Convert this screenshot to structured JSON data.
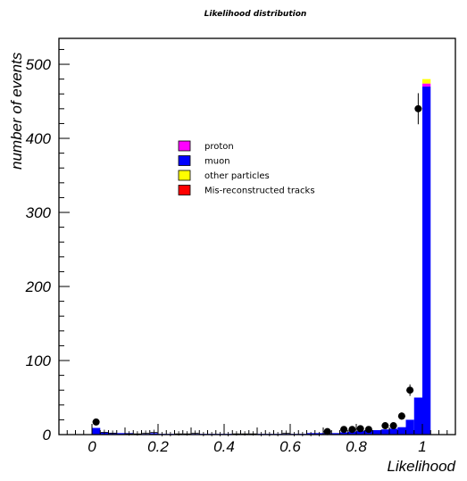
{
  "chart_data": {
    "type": "bar",
    "title": "Likelihood distribution",
    "xlabel": "Likelihood",
    "ylabel": "number of events",
    "xlim": [
      -0.1,
      1.1
    ],
    "ylim": [
      0,
      535
    ],
    "x_ticks": [
      0,
      0.2,
      0.4,
      0.6,
      0.8,
      1
    ],
    "x_tick_labels": [
      "0",
      "0.2",
      "0.4",
      "0.6",
      "0.8",
      "1"
    ],
    "y_ticks": [
      0,
      100,
      200,
      300,
      400,
      500
    ],
    "y_tick_labels": [
      "0",
      "100",
      "200",
      "300",
      "400",
      "500"
    ],
    "bin_edges": [
      -0.1,
      -0.075,
      -0.05,
      -0.025,
      0,
      0.025,
      0.05,
      0.075,
      0.1,
      0.125,
      0.15,
      0.175,
      0.2,
      0.225,
      0.25,
      0.275,
      0.3,
      0.325,
      0.35,
      0.375,
      0.4,
      0.425,
      0.45,
      0.475,
      0.5,
      0.525,
      0.55,
      0.575,
      0.6,
      0.625,
      0.65,
      0.675,
      0.7,
      0.725,
      0.75,
      0.775,
      0.8,
      0.825,
      0.85,
      0.875,
      0.9,
      0.925,
      0.95,
      0.975,
      1,
      1.025,
      1.05,
      1.075,
      1.1
    ],
    "legend_position": "upper-left-center",
    "series": [
      {
        "name": "Mis-reconstructed tracks",
        "color": "#ff0000",
        "values": [
          0,
          0,
          0,
          0,
          0,
          0,
          0,
          0,
          0,
          0,
          0,
          0,
          0,
          0,
          0,
          0,
          0,
          0,
          0,
          0,
          0,
          0,
          0,
          0,
          0,
          0,
          0,
          0,
          0,
          0,
          0,
          0,
          0,
          0,
          0,
          0,
          0,
          0,
          0,
          0,
          0,
          0,
          0,
          0,
          0,
          0,
          0,
          0
        ]
      },
      {
        "name": "muon",
        "color": "#0000ff",
        "values": [
          0,
          0,
          0,
          0,
          9,
          3,
          2,
          2,
          2,
          1,
          1,
          2,
          1,
          1,
          1,
          1,
          1,
          1,
          1,
          1,
          1,
          1,
          1,
          1,
          1,
          1,
          1,
          1,
          1,
          1,
          2,
          2,
          2,
          2,
          3,
          4,
          5,
          6,
          6,
          7,
          8,
          10,
          20,
          50,
          470,
          0,
          0,
          0
        ]
      },
      {
        "name": "proton",
        "color": "#ff00ff",
        "values": [
          0,
          0,
          0,
          0,
          0,
          0,
          0,
          0,
          0,
          0,
          0,
          0,
          0,
          0,
          0,
          0,
          0,
          0,
          0,
          0,
          0,
          0,
          0,
          0,
          0,
          0,
          0,
          0,
          0,
          0,
          0,
          0,
          0,
          0,
          0,
          0,
          0,
          0,
          0,
          0,
          0,
          0,
          0,
          0,
          4,
          0,
          0,
          0
        ]
      },
      {
        "name": "other particles",
        "color": "#ffff00",
        "values": [
          0,
          0,
          0,
          0,
          0,
          0,
          0,
          0,
          0,
          0,
          0,
          0,
          0,
          0,
          0,
          0,
          0,
          0,
          0,
          0,
          0,
          0,
          0,
          0,
          0,
          0,
          0,
          0,
          0,
          0,
          0,
          0,
          0,
          0,
          0,
          0,
          0,
          0,
          0,
          0,
          0,
          0,
          0,
          0,
          6,
          0,
          0,
          0
        ]
      }
    ],
    "data_points": {
      "x": [
        0.0125,
        0.7125,
        0.7625,
        0.7875,
        0.8125,
        0.8375,
        0.8875,
        0.9125,
        0.9375,
        0.9625,
        0.9875
      ],
      "y": [
        17,
        4,
        7,
        7,
        8,
        7,
        12,
        12,
        25,
        60,
        440
      ]
    },
    "small_crosses": {
      "x": [
        0.0375,
        0.0625,
        0.1125,
        0.1375,
        0.1625,
        0.1875,
        0.2125,
        0.2375,
        0.2625,
        0.2875,
        0.3125,
        0.3375,
        0.3625,
        0.3875,
        0.4125,
        0.4375,
        0.4625,
        0.4875,
        0.5125,
        0.5375,
        0.5625,
        0.5875,
        0.6125,
        0.6375,
        0.6625,
        0.6875
      ],
      "y": [
        3,
        2,
        1,
        1,
        2,
        3,
        0,
        0,
        1,
        1,
        2,
        0,
        0,
        0,
        0,
        1,
        1,
        1,
        0,
        0,
        0,
        2,
        0,
        0,
        0,
        0
      ]
    },
    "legend_order": [
      "proton",
      "muon",
      "other particles",
      "Mis-reconstructed tracks"
    ]
  }
}
